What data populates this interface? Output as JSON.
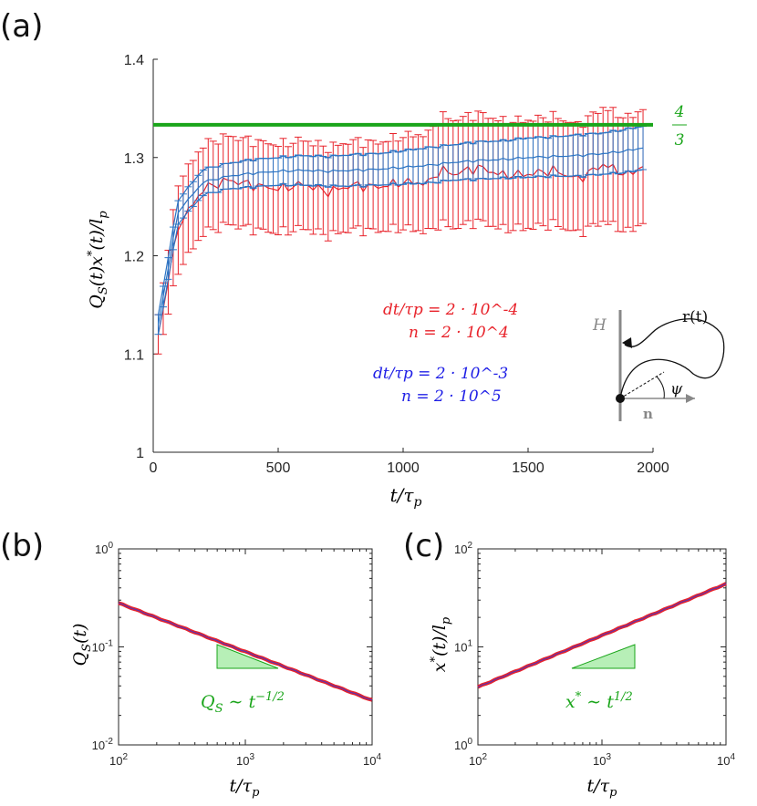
{
  "panel_labels": {
    "a": "(a)",
    "b": "(b)",
    "c": "(c)"
  },
  "colors": {
    "red": "#e8222a",
    "blue": "#2b74c4",
    "bluetext": "#1f1fe6",
    "green": "#1aa51a",
    "gray": "#888888"
  },
  "chart_data": [
    {
      "id": "a",
      "type": "line",
      "title": "",
      "xlabel": "t/τ_p",
      "ylabel": "Q_S(t) x*(t) / l_p",
      "xlim": [
        0,
        2000
      ],
      "ylim": [
        1,
        1.4
      ],
      "xticks": [
        0,
        500,
        1000,
        1500,
        2000
      ],
      "xtick_labels": [
        "0",
        "500",
        "1000",
        "1500",
        "2000"
      ],
      "yticks": [
        1,
        1.1,
        1.2,
        1.3,
        1.4
      ],
      "ytick_labels": [
        "1",
        "1.1",
        "1.2",
        "1.3",
        "1.4"
      ],
      "hline": {
        "y": 1.3333,
        "label_num": "4",
        "label_den": "3"
      },
      "series": [
        {
          "name": "dt/τp = 2·10^-4, n = 2·10^4",
          "color": "red",
          "x": [
            20,
            100,
            200,
            300,
            400,
            500,
            600,
            700,
            800,
            900,
            1000,
            1100,
            1150,
            1200,
            1300,
            1400,
            1500,
            1600,
            1700,
            1800,
            1900,
            1960
          ],
          "mean": [
            1.12,
            1.23,
            1.268,
            1.277,
            1.272,
            1.268,
            1.273,
            1.265,
            1.272,
            1.27,
            1.275,
            1.274,
            1.288,
            1.283,
            1.29,
            1.282,
            1.283,
            1.287,
            1.278,
            1.293,
            1.282,
            1.292
          ],
          "err": [
            0.02,
            0.045,
            0.045,
            0.045,
            0.045,
            0.045,
            0.045,
            0.045,
            0.045,
            0.045,
            0.047,
            0.05,
            0.055,
            0.055,
            0.055,
            0.055,
            0.055,
            0.055,
            0.055,
            0.058,
            0.058,
            0.058
          ]
        },
        {
          "name": "dt/τp = 2·10^-3, n = 2·10^5",
          "color": "blue",
          "x": [
            20,
            100,
            200,
            300,
            400,
            500,
            600,
            700,
            800,
            900,
            1000,
            1100,
            1200,
            1300,
            1400,
            1500,
            1600,
            1700,
            1800,
            1900,
            1960
          ],
          "mean": [
            1.13,
            1.245,
            1.275,
            1.281,
            1.284,
            1.286,
            1.287,
            1.286,
            1.287,
            1.288,
            1.29,
            1.292,
            1.295,
            1.297,
            1.298,
            1.3,
            1.301,
            1.302,
            1.304,
            1.307,
            1.31
          ],
          "err": [
            0.01,
            0.012,
            0.013,
            0.013,
            0.014,
            0.014,
            0.015,
            0.015,
            0.016,
            0.016,
            0.017,
            0.018,
            0.018,
            0.019,
            0.019,
            0.02,
            0.02,
            0.021,
            0.021,
            0.022,
            0.022
          ]
        }
      ],
      "legend": {
        "red_line1": "dt/τp = 2 · 10^-4",
        "red_line2": "n = 2 · 10^4",
        "blue_line1": "dt/τp = 2 · 10^-3",
        "blue_line2": "n = 2 · 10^5"
      },
      "inset": {
        "H": "H",
        "r": "r(t)",
        "psi": "ψ",
        "n": "n"
      }
    },
    {
      "id": "b",
      "type": "line",
      "xscale": "log",
      "yscale": "log",
      "xlabel": "t/τ_p",
      "ylabel": "Q_S(t)",
      "xlim": [
        100,
        10000
      ],
      "ylim": [
        0.01,
        1
      ],
      "xtick_labels": [
        "10^2",
        "10^3",
        "10^4"
      ],
      "ytick_labels": [
        "10^-2",
        "10^-1",
        "10^0"
      ],
      "series": [
        {
          "name": "red",
          "x": [
            100,
            10000
          ],
          "y": [
            0.28,
            0.0285
          ]
        },
        {
          "name": "blue",
          "x": [
            100,
            10000
          ],
          "y": [
            0.28,
            0.0285
          ]
        }
      ],
      "annotation": "Q_S ~ t^-1/2"
    },
    {
      "id": "c",
      "type": "line",
      "xscale": "log",
      "yscale": "log",
      "xlabel": "t/τ_p",
      "ylabel": "x*(t)/l_p",
      "xlim": [
        100,
        10000
      ],
      "ylim": [
        1,
        100
      ],
      "xtick_labels": [
        "10^2",
        "10^3",
        "10^4"
      ],
      "ytick_labels": [
        "10^0",
        "10^1",
        "10^2"
      ],
      "series": [
        {
          "name": "red",
          "x": [
            100,
            10000
          ],
          "y": [
            3.9,
            44
          ]
        },
        {
          "name": "blue",
          "x": [
            100,
            10000
          ],
          "y": [
            3.9,
            44
          ]
        }
      ],
      "annotation": "x* ~ t^1/2"
    }
  ]
}
